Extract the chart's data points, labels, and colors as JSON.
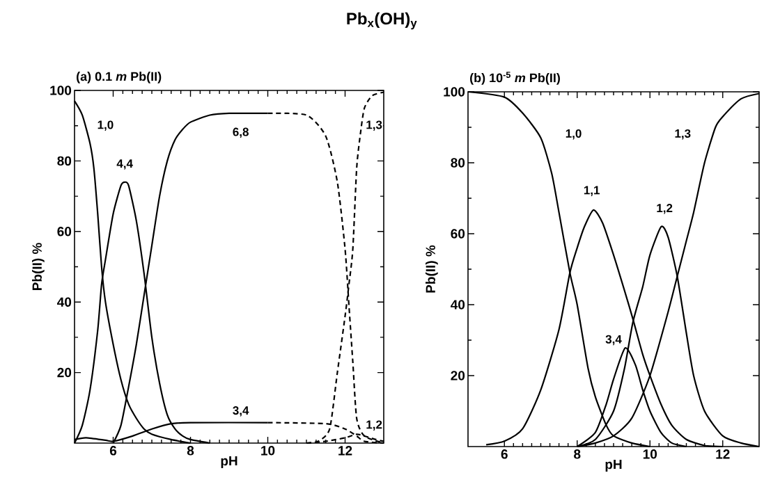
{
  "chart_data": [
    {
      "type": "line",
      "title": "Pb$_{x}$(OH)$_{y}$",
      "subtitle": "(a) 0.1 *m* Pb(II)",
      "xlabel": "pH",
      "ylabel": "Pb(II)  %",
      "xlim": [
        5,
        13
      ],
      "ylim": [
        0,
        100
      ],
      "xticks": [
        6,
        8,
        10,
        12
      ],
      "yticks": [
        20,
        40,
        60,
        80,
        100
      ],
      "series": [
        {
          "color": "#000000",
          "line_style": "solid",
          "x": [
            5.0,
            5.2,
            5.4,
            5.5,
            5.6,
            5.7,
            5.8,
            6.0,
            6.2,
            6.4,
            6.6,
            6.8,
            7.0,
            7.5,
            8.0
          ],
          "values": [
            97,
            93,
            85,
            78,
            65,
            50,
            40,
            28,
            18,
            11,
            7,
            4,
            2.5,
            1,
            0
          ]
        },
        {
          "color": "#000000",
          "line_style": "solid",
          "x": [
            5.0,
            5.2,
            5.4,
            5.6,
            5.7,
            5.8,
            6.0,
            6.2,
            6.3,
            6.4,
            6.6,
            6.8,
            7.0,
            7.2,
            7.4,
            7.6,
            7.8,
            8.0,
            8.5
          ],
          "values": [
            0,
            5,
            15,
            32,
            45,
            52,
            65,
            73,
            74,
            73,
            63,
            48,
            30,
            17,
            8,
            4,
            2,
            1,
            0
          ]
        },
        {
          "color": "#000000",
          "line_style": "solid",
          "x": [
            6.0,
            6.2,
            6.4,
            6.6,
            6.8,
            7.0,
            7.2,
            7.4,
            7.6,
            7.8,
            8.0,
            8.5,
            9.0,
            10.0
          ],
          "values": [
            0,
            5,
            16,
            28,
            42,
            56,
            70,
            80,
            86,
            89,
            91,
            93,
            93.5,
            93.5
          ]
        },
        {
          "color": "#000000",
          "line_style": "dashed",
          "x": [
            10.0,
            11.0,
            11.5,
            11.8,
            12.0,
            12.1,
            12.2,
            12.3,
            12.5,
            13.0
          ],
          "values": [
            93.5,
            93,
            87,
            74,
            55,
            39,
            23,
            7,
            2,
            0
          ]
        },
        {
          "color": "#000000",
          "line_style": "solid",
          "x": [
            5.0,
            5.3,
            5.8,
            6.0,
            6.5,
            7.0,
            7.5,
            8.0,
            10.0
          ],
          "values": [
            1,
            1.5,
            0.8,
            0.5,
            2,
            4,
            5.5,
            5.8,
            5.8
          ]
        },
        {
          "color": "#000000",
          "line_style": "dashed",
          "x": [
            10.0,
            11.5,
            12.0,
            12.3,
            12.5,
            13.0
          ],
          "values": [
            5.8,
            5.5,
            4,
            2,
            0.5,
            0
          ]
        },
        {
          "color": "#000000",
          "line_style": "dashed",
          "x": [
            11.0,
            11.3,
            11.6,
            11.8,
            12.0,
            12.1,
            12.2,
            12.3,
            12.4,
            12.5,
            12.7,
            13.0
          ],
          "values": [
            0,
            0.5,
            4,
            20,
            36,
            45,
            55,
            78,
            88,
            95,
            98.5,
            99.5
          ]
        },
        {
          "color": "#000000",
          "line_style": "dashed",
          "x": [
            11.0,
            11.5,
            12.0,
            12.3,
            12.5,
            12.8,
            13.0
          ],
          "values": [
            0,
            0.5,
            1.5,
            2.5,
            2,
            1,
            0.5
          ]
        }
      ],
      "annotations": [
        {
          "text": "1,0",
          "x": 5.8,
          "y": 90
        },
        {
          "text": "4,4",
          "x": 6.3,
          "y": 79
        },
        {
          "text": "6,8",
          "x": 9.3,
          "y": 88
        },
        {
          "text": "3,4",
          "x": 9.3,
          "y": 9
        },
        {
          "text": "1,3",
          "x": 12.75,
          "y": 90
        },
        {
          "text": "1,2",
          "x": 12.75,
          "y": 5
        }
      ]
    },
    {
      "type": "line",
      "subtitle": "(b) 10$^{-5}$ *m* Pb(II)",
      "xlabel": "pH",
      "ylabel": "Pb(II)  %",
      "xlim": [
        5,
        13
      ],
      "ylim": [
        0,
        100
      ],
      "xticks": [
        6,
        8,
        10,
        12
      ],
      "yticks": [
        20,
        40,
        60,
        80,
        100
      ],
      "series": [
        {
          "color": "#000000",
          "line_style": "solid",
          "x": [
            5.0,
            6.0,
            6.5,
            7.0,
            7.3,
            7.5,
            7.8,
            8.0,
            8.3,
            8.5,
            8.8,
            9.0,
            9.5,
            10.0
          ],
          "values": [
            100,
            98.5,
            94,
            87,
            77,
            66,
            49,
            40,
            22,
            14,
            6,
            3,
            1,
            0
          ]
        },
        {
          "color": "#000000",
          "line_style": "solid",
          "x": [
            5.5,
            6.0,
            6.5,
            7.0,
            7.5,
            7.8,
            8.0,
            8.2,
            8.45,
            8.7,
            9.0,
            9.3,
            9.53,
            9.8,
            10.0,
            10.3,
            10.6,
            11.0,
            11.5,
            12.0
          ],
          "values": [
            0.5,
            1.5,
            5,
            16,
            33,
            49,
            56,
            62,
            66.7,
            63,
            54,
            44,
            36,
            26,
            20,
            12,
            6,
            2,
            0.3,
            0
          ]
        },
        {
          "color": "#000000",
          "line_style": "solid",
          "x": [
            8.0,
            8.5,
            9.0,
            9.3,
            9.53,
            9.8,
            10.0,
            10.31,
            10.5,
            10.75,
            11.0,
            11.2,
            11.5,
            12.0,
            12.5,
            13.0
          ],
          "values": [
            0,
            2,
            10,
            22,
            35,
            45,
            54,
            62,
            59,
            48,
            32,
            20,
            10,
            3,
            1,
            0
          ]
        },
        {
          "color": "#000000",
          "line_style": "solid",
          "x": [
            8.0,
            8.5,
            8.8,
            9.0,
            9.32,
            9.6,
            9.8,
            10.0,
            10.3,
            10.6,
            11.0
          ],
          "values": [
            0,
            4,
            12,
            19,
            27.8,
            23,
            16,
            10,
            4,
            1,
            0
          ]
        },
        {
          "color": "#000000",
          "line_style": "solid",
          "x": [
            8.0,
            8.5,
            9.0,
            9.5,
            10.0,
            10.5,
            10.75,
            11.0,
            11.2,
            11.5,
            11.8,
            12.0,
            12.5,
            13.0
          ],
          "values": [
            0,
            1,
            3,
            8,
            20,
            38,
            48,
            58,
            66,
            80,
            90,
            93,
            98,
            99.5
          ]
        }
      ],
      "annotations": [
        {
          "text": "1,0",
          "x": 7.9,
          "y": 88
        },
        {
          "text": "1,1",
          "x": 8.4,
          "y": 72
        },
        {
          "text": "1,2",
          "x": 10.4,
          "y": 67
        },
        {
          "text": "3,4",
          "x": 9.0,
          "y": 30
        },
        {
          "text": "1,3",
          "x": 10.9,
          "y": 88
        }
      ]
    }
  ]
}
